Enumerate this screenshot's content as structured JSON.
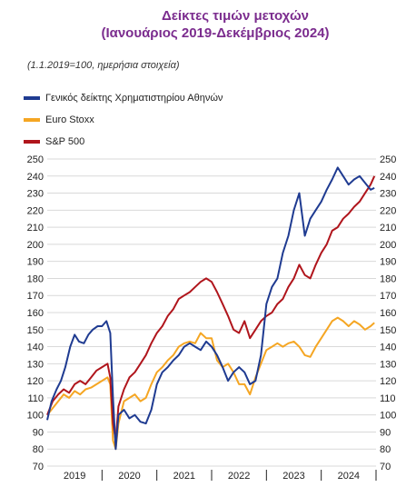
{
  "chart_data": {
    "type": "line",
    "title": "Δείκτες τιμών μετοχών",
    "subtitle": "(Ιανουάριος 2019-Δεκέμβριος 2024)",
    "note": "(1.1.2019=100, ημερήσια στοιχεία)",
    "ylim": [
      70,
      250
    ],
    "yticks": [
      70,
      80,
      90,
      100,
      110,
      120,
      130,
      140,
      150,
      160,
      170,
      180,
      190,
      200,
      210,
      220,
      230,
      240,
      250
    ],
    "x_categories": [
      "2019",
      "2020",
      "2021",
      "2022",
      "2023",
      "2024"
    ],
    "xlim": [
      2019.0,
      2025.0
    ],
    "grid": true,
    "legend_position": "top-left",
    "series": [
      {
        "name": "Γενικός δείκτης Χρηματιστηρίου Αθηνών",
        "color": "#1f3b91",
        "x": [
          2019.0,
          2019.08,
          2019.17,
          2019.25,
          2019.33,
          2019.42,
          2019.5,
          2019.58,
          2019.67,
          2019.75,
          2019.83,
          2019.92,
          2020.0,
          2020.08,
          2020.15,
          2020.2,
          2020.25,
          2020.3,
          2020.4,
          2020.5,
          2020.6,
          2020.7,
          2020.8,
          2020.9,
          2021.0,
          2021.1,
          2021.2,
          2021.3,
          2021.4,
          2021.5,
          2021.6,
          2021.7,
          2021.8,
          2021.9,
          2022.0,
          2022.1,
          2022.2,
          2022.3,
          2022.4,
          2022.5,
          2022.6,
          2022.7,
          2022.8,
          2022.9,
          2023.0,
          2023.1,
          2023.2,
          2023.3,
          2023.4,
          2023.5,
          2023.6,
          2023.7,
          2023.8,
          2023.9,
          2024.0,
          2024.1,
          2024.2,
          2024.3,
          2024.4,
          2024.5,
          2024.6,
          2024.7,
          2024.8,
          2024.9,
          2024.97
        ],
        "y": [
          97,
          108,
          115,
          120,
          128,
          140,
          147,
          143,
          142,
          147,
          150,
          152,
          152,
          155,
          148,
          110,
          80,
          100,
          103,
          98,
          100,
          96,
          95,
          103,
          118,
          125,
          128,
          132,
          135,
          140,
          142,
          140,
          138,
          143,
          140,
          135,
          128,
          120,
          125,
          128,
          125,
          118,
          120,
          135,
          165,
          175,
          180,
          195,
          205,
          220,
          230,
          205,
          215,
          220,
          225,
          232,
          238,
          245,
          240,
          235,
          238,
          240,
          236,
          232,
          233
        ]
      },
      {
        "name": "Euro Stoxx",
        "color": "#f5a623",
        "x": [
          2019.0,
          2019.1,
          2019.2,
          2019.3,
          2019.4,
          2019.5,
          2019.6,
          2019.7,
          2019.8,
          2019.9,
          2020.0,
          2020.1,
          2020.15,
          2020.2,
          2020.25,
          2020.3,
          2020.4,
          2020.5,
          2020.6,
          2020.7,
          2020.8,
          2020.9,
          2021.0,
          2021.1,
          2021.2,
          2021.3,
          2021.4,
          2021.5,
          2021.6,
          2021.7,
          2021.8,
          2021.9,
          2022.0,
          2022.1,
          2022.2,
          2022.3,
          2022.4,
          2022.5,
          2022.6,
          2022.7,
          2022.8,
          2022.9,
          2023.0,
          2023.1,
          2023.2,
          2023.3,
          2023.4,
          2023.5,
          2023.6,
          2023.7,
          2023.8,
          2023.9,
          2024.0,
          2024.1,
          2024.2,
          2024.3,
          2024.4,
          2024.5,
          2024.6,
          2024.7,
          2024.8,
          2024.9,
          2024.97
        ],
        "y": [
          100,
          104,
          108,
          112,
          110,
          114,
          112,
          115,
          116,
          118,
          120,
          122,
          118,
          85,
          80,
          95,
          108,
          110,
          112,
          108,
          110,
          118,
          125,
          128,
          132,
          135,
          140,
          142,
          143,
          142,
          148,
          145,
          145,
          132,
          128,
          130,
          125,
          118,
          118,
          112,
          122,
          130,
          138,
          140,
          142,
          140,
          142,
          143,
          140,
          135,
          134,
          140,
          145,
          150,
          155,
          157,
          155,
          152,
          155,
          153,
          150,
          152,
          154
        ]
      },
      {
        "name": "S&P 500",
        "color": "#b0151c",
        "x": [
          2019.0,
          2019.1,
          2019.2,
          2019.3,
          2019.4,
          2019.5,
          2019.6,
          2019.7,
          2019.8,
          2019.9,
          2020.0,
          2020.1,
          2020.15,
          2020.2,
          2020.25,
          2020.3,
          2020.4,
          2020.5,
          2020.6,
          2020.7,
          2020.8,
          2020.9,
          2021.0,
          2021.1,
          2021.2,
          2021.3,
          2021.4,
          2021.5,
          2021.6,
          2021.7,
          2021.8,
          2021.9,
          2022.0,
          2022.1,
          2022.2,
          2022.3,
          2022.4,
          2022.5,
          2022.6,
          2022.7,
          2022.8,
          2022.9,
          2023.0,
          2023.1,
          2023.2,
          2023.3,
          2023.4,
          2023.5,
          2023.6,
          2023.7,
          2023.8,
          2023.9,
          2024.0,
          2024.1,
          2024.2,
          2024.3,
          2024.4,
          2024.5,
          2024.6,
          2024.7,
          2024.8,
          2024.9,
          2024.97
        ],
        "y": [
          100,
          108,
          112,
          115,
          113,
          118,
          120,
          118,
          122,
          126,
          128,
          130,
          122,
          95,
          85,
          105,
          115,
          122,
          125,
          130,
          135,
          142,
          148,
          152,
          158,
          162,
          168,
          170,
          172,
          175,
          178,
          180,
          178,
          172,
          165,
          158,
          150,
          148,
          155,
          145,
          150,
          155,
          158,
          160,
          165,
          168,
          175,
          180,
          188,
          182,
          180,
          188,
          195,
          200,
          208,
          210,
          215,
          218,
          222,
          225,
          230,
          235,
          240
        ]
      }
    ]
  }
}
